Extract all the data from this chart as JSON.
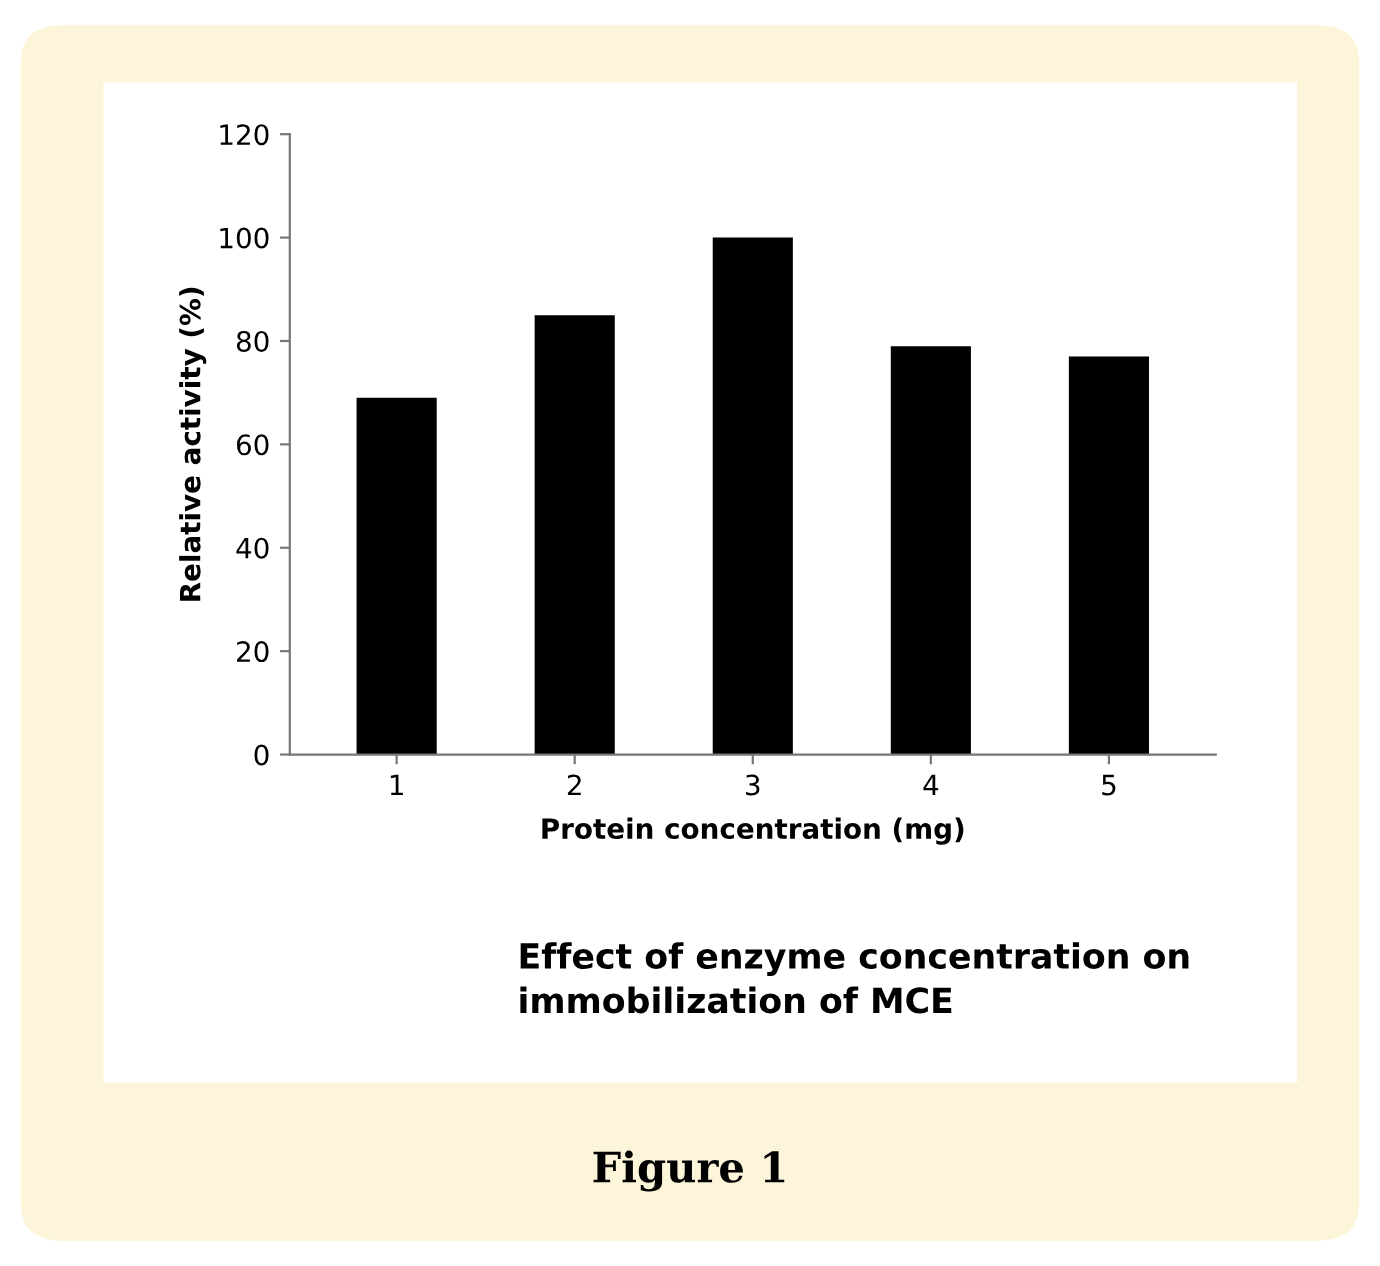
{
  "chart_data": {
    "type": "bar",
    "title": "Effect of enzyme concentration on\nimmobilization of MCE",
    "xlabel": "Protein concentration (mg)",
    "ylabel": "Relative activity (%)",
    "categories": [
      "1",
      "2",
      "3",
      "4",
      "5"
    ],
    "values": [
      69,
      85,
      100,
      79,
      77
    ],
    "color": "#000000",
    "ylim": [
      0,
      120
    ],
    "yticks": [
      0,
      20,
      40,
      60,
      80,
      100,
      120
    ],
    "grid": false,
    "legend": false,
    "annotations": [
      "Figure 1"
    ]
  }
}
